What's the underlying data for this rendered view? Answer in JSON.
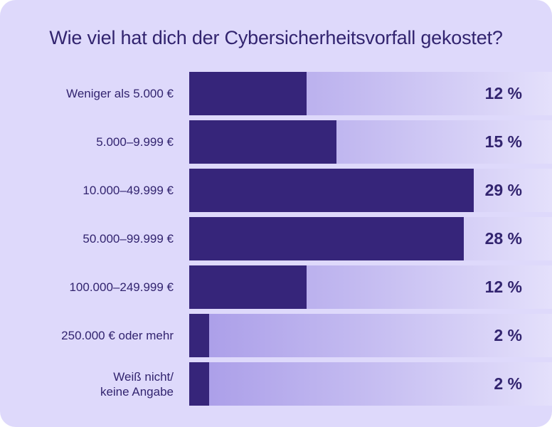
{
  "colors": {
    "background": "#ded9fb",
    "bar_fill": "#36257a",
    "bar_track": "#c2b9f0",
    "text": "#32246f"
  },
  "chart_data": {
    "type": "bar",
    "orientation": "horizontal",
    "title": "Wie viel hat dich der Cybersicherheitsvorfall gekostet?",
    "categories": [
      "Weniger als 5.000 €",
      "5.000–9.999 €",
      "10.000–49.999 €",
      "50.000–99.999 €",
      "100.000–249.999 €",
      "250.000 € oder mehr",
      "Weiß nicht/\nkeine Angabe"
    ],
    "values": [
      12,
      15,
      29,
      28,
      12,
      2,
      2
    ],
    "value_labels": [
      "12 %",
      "15 %",
      "29 %",
      "28 %",
      "12 %",
      "2 %",
      "2 %"
    ],
    "xlim": [
      0,
      37
    ],
    "grid": false,
    "legend": "none"
  }
}
